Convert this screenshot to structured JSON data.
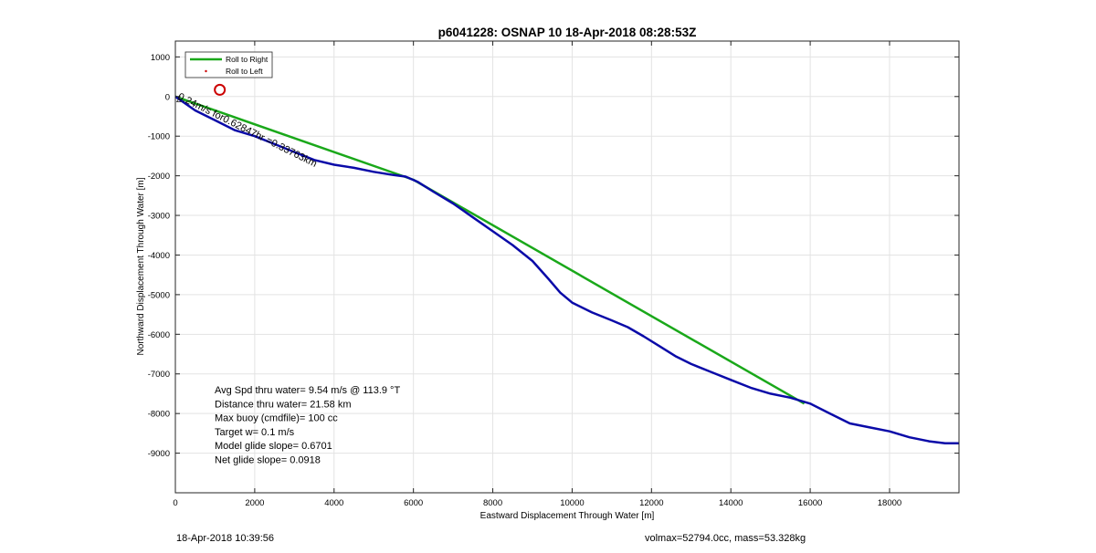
{
  "chart_data": {
    "type": "line",
    "title": "p6041228: OSNAP 10 18-Apr-2018 08:28:53Z",
    "xlabel": "Eastward Displacement Through Water [m]",
    "ylabel": "Northward Displacement Through Water [m]",
    "xlim": [
      0,
      19750
    ],
    "ylim": [
      -10000,
      1400
    ],
    "xticks": [
      0,
      2000,
      4000,
      6000,
      8000,
      10000,
      12000,
      14000,
      16000,
      18000
    ],
    "yticks": [
      1000,
      0,
      -1000,
      -2000,
      -3000,
      -4000,
      -5000,
      -6000,
      -7000,
      -8000,
      -9000
    ],
    "grid": true,
    "legend": {
      "position": "top-left",
      "entries": [
        {
          "label": "Roll to Right",
          "color": "#1aa81a",
          "style": "line"
        },
        {
          "label": "Roll to Left",
          "color": "#cc0000",
          "style": "marker"
        }
      ]
    },
    "series": [
      {
        "color": "#1aa81a",
        "x": [
          0,
          6000,
          15850
        ],
        "y": [
          0,
          -2100,
          -7750
        ]
      },
      {
        "color": "#0a0aa8",
        "x": [
          0,
          500,
          1000,
          1500,
          2000,
          2500,
          3000,
          3500,
          4000,
          4500,
          5000,
          5500,
          5800,
          6100,
          6500,
          7000,
          7500,
          8000,
          8500,
          9000,
          9400,
          9700,
          10000,
          10500,
          11000,
          11400,
          11800,
          12200,
          12600,
          13000,
          13500,
          14000,
          14500,
          15000,
          15500,
          16000,
          16500,
          17000,
          17500,
          18000,
          18500,
          19000,
          19400,
          19750
        ],
        "y": [
          0,
          -350,
          -600,
          -850,
          -1000,
          -1200,
          -1400,
          -1600,
          -1720,
          -1800,
          -1900,
          -1980,
          -2020,
          -2150,
          -2400,
          -2700,
          -3050,
          -3400,
          -3750,
          -4150,
          -4600,
          -4950,
          -5200,
          -5450,
          -5650,
          -5820,
          -6050,
          -6300,
          -6550,
          -6750,
          -6950,
          -7150,
          -7350,
          -7500,
          -7600,
          -7750,
          -8000,
          -8250,
          -8350,
          -8450,
          -8600,
          -8700,
          -8750,
          -8750
        ]
      },
      {
        "color": "#cc0000",
        "type": "scatter",
        "x": [
          1120
        ],
        "y": [
          170
        ]
      }
    ],
    "annotations": {
      "rotated_label": "0.24m/s for0.62847hr =0.33763km",
      "stats": [
        "Avg Spd thru water=  9.54 m/s @ 113.9 °T",
        "Distance thru water= 21.58 km",
        "Max buoy (cmdfile)= 100 cc",
        "Target w= 0.1 m/s",
        "Model glide slope= 0.6701",
        "Net glide slope= 0.0918"
      ]
    }
  },
  "footer": {
    "timestamp": "18-Apr-2018 10:39:56",
    "vol_mass": "volmax=52794.0cc, mass=53.328kg"
  }
}
